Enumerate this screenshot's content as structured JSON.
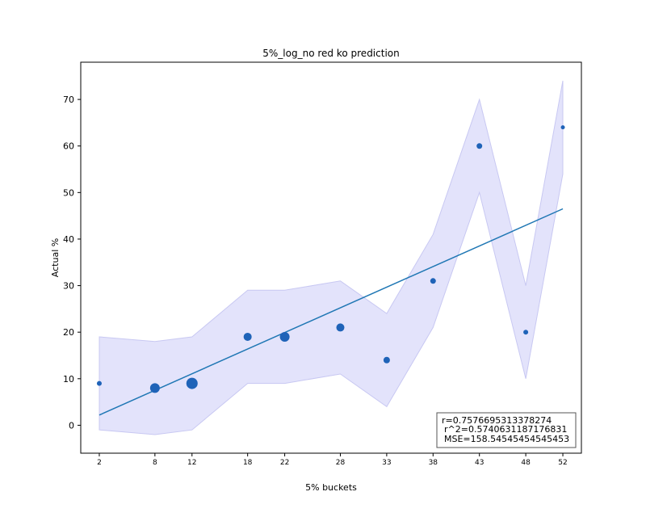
{
  "chart_data": {
    "type": "scatter",
    "title": "5%_log_no red ko prediction",
    "xlabel": "5% buckets",
    "ylabel": "Actual %",
    "xlim": [
      0,
      54
    ],
    "ylim": [
      -6,
      78
    ],
    "x_ticks": [
      2,
      8,
      12,
      18,
      22,
      28,
      33,
      38,
      43,
      48,
      52
    ],
    "y_ticks": [
      0,
      10,
      20,
      30,
      40,
      50,
      60,
      70
    ],
    "grid": false,
    "colors": {
      "points": "#1f63b8",
      "fit_line": "#1f77b4",
      "band_fill": "#e0e0fb",
      "band_edge": "#c8c8f2"
    },
    "points": [
      {
        "x": 2,
        "y": 9,
        "size": 3
      },
      {
        "x": 8,
        "y": 8,
        "size": 6
      },
      {
        "x": 12,
        "y": 9,
        "size": 7
      },
      {
        "x": 18,
        "y": 19,
        "size": 5
      },
      {
        "x": 22,
        "y": 19,
        "size": 6
      },
      {
        "x": 28,
        "y": 21,
        "size": 5
      },
      {
        "x": 33,
        "y": 14,
        "size": 4
      },
      {
        "x": 38,
        "y": 31,
        "size": 3.5
      },
      {
        "x": 43,
        "y": 60,
        "size": 3.5
      },
      {
        "x": 48,
        "y": 20,
        "size": 3
      },
      {
        "x": 52,
        "y": 64,
        "size": 2.5
      }
    ],
    "confidence_band": {
      "x": [
        2,
        8,
        12,
        18,
        22,
        28,
        33,
        38,
        43,
        48,
        52
      ],
      "upper": [
        19,
        18,
        19,
        29,
        29,
        31,
        24,
        41,
        70,
        30,
        74
      ],
      "lower": [
        -1,
        -2,
        -1,
        9,
        9,
        11,
        4,
        21,
        50,
        10,
        54
      ]
    },
    "fit_line": {
      "x": [
        2,
        52
      ],
      "y": [
        2.2,
        46.5
      ]
    },
    "stats": {
      "line1": "r=0.7576695313378274",
      "line2": "r^2=0.5740631187176831",
      "line3": "MSE=158.54545454545453"
    }
  }
}
